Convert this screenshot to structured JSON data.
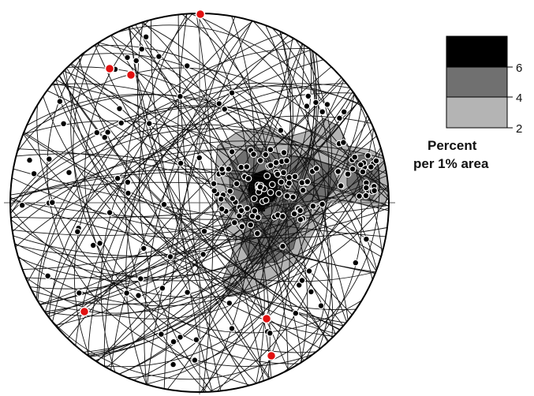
{
  "legend": {
    "title_line1": "Percent",
    "title_line2": "per 1% area",
    "levels": [
      {
        "label": "2",
        "color": "#b4b4b4"
      },
      {
        "label": "4",
        "color": "#707070"
      },
      {
        "label": "6",
        "color": "#000000"
      }
    ]
  },
  "colors": {
    "contour_low": "#b4b4b4",
    "contour_mid": "#707070",
    "contour_high": "#000000",
    "pole_marker": "#000000",
    "highlight_marker": "#e11010",
    "great_circle": "#111111"
  }
}
